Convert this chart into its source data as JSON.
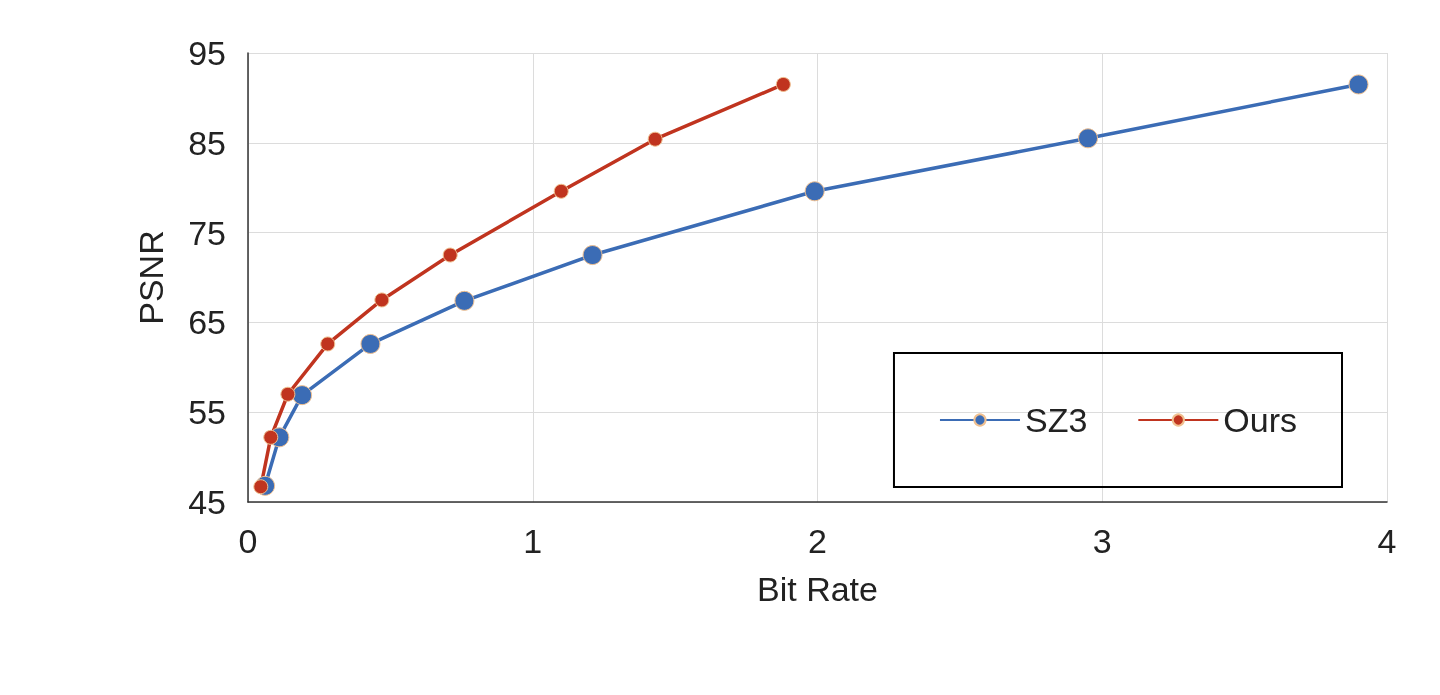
{
  "chart_data": {
    "type": "line",
    "xlabel": "Bit Rate",
    "ylabel": "PSNR",
    "xlim": [
      0,
      4
    ],
    "xticks": [
      0,
      1,
      2,
      3,
      4
    ],
    "ylim": [
      45,
      95
    ],
    "yticks": [
      45,
      55,
      65,
      75,
      85,
      95
    ],
    "grid": true,
    "legend": "bottom right",
    "marker": "circle",
    "line_style": "solid",
    "series": [
      {
        "name": "SZ3",
        "color": "#3b6cb5",
        "x": [
          0.06,
          0.11,
          0.19,
          0.43,
          0.76,
          1.21,
          1.99,
          2.95,
          3.9
        ],
        "values": [
          46.8,
          52.2,
          56.9,
          62.6,
          67.4,
          72.5,
          79.6,
          85.5,
          91.5
        ]
      },
      {
        "name": "Ours",
        "color": "#c0341f",
        "x": [
          0.045,
          0.08,
          0.14,
          0.28,
          0.47,
          0.71,
          1.1,
          1.43,
          1.88
        ],
        "values": [
          46.7,
          52.2,
          57.0,
          62.6,
          67.5,
          72.5,
          79.6,
          85.4,
          91.5
        ]
      }
    ]
  }
}
